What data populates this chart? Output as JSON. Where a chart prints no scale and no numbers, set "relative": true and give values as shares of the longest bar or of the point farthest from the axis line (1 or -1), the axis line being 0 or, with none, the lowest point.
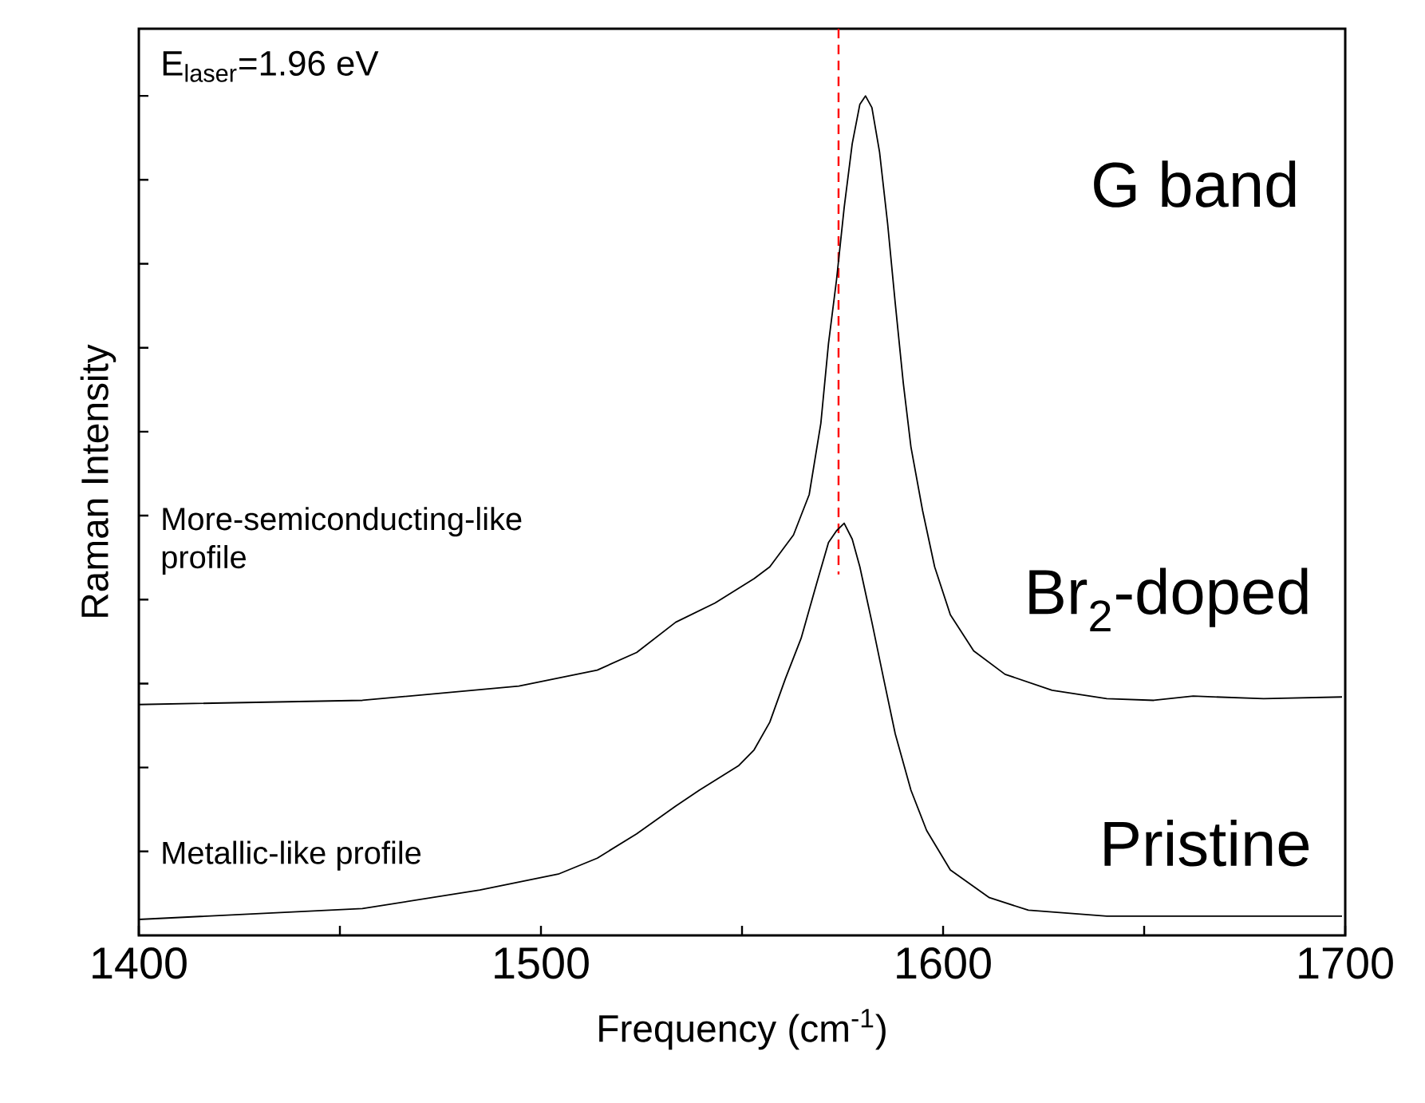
{
  "chart_data": {
    "type": "line",
    "relative": true,
    "xlabel": "Frequency (cm$^{-1}$)",
    "ylabel": "Raman Intensity",
    "xlim": [
      1400,
      1700
    ],
    "xticks": [
      1400,
      1500,
      1600,
      1700
    ],
    "ref_lines": [
      {
        "axis": "x",
        "value": 1574,
        "color": "#ff0000",
        "line_style": "dashed"
      }
    ],
    "annotations": [
      "E$_{laser}$=1.96 eV",
      "G band",
      "More-semiconducting-like profile",
      "Metallic-like profile"
    ],
    "series": [
      {
        "name": "Br$_{2}$-doped",
        "color": "#000000",
        "x": [
          1400.0,
          1455.6,
          1494.5,
          1514.0,
          1523.8,
          1533.5,
          1543.3,
          1553.0,
          1556.9,
          1562.8,
          1566.7,
          1569.6,
          1571.5,
          1573.5,
          1575.4,
          1577.4,
          1579.3,
          1580.7,
          1582.3,
          1584.2,
          1586.2,
          1588.1,
          1590.1,
          1592.0,
          1594.9,
          1597.9,
          1601.8,
          1607.6,
          1615.4,
          1627.1,
          1640.7,
          1652.4,
          1662.2,
          1679.7,
          1699.2
        ],
        "values": [
          0.275,
          0.28,
          0.297,
          0.316,
          0.337,
          0.373,
          0.396,
          0.425,
          0.439,
          0.477,
          0.525,
          0.61,
          0.705,
          0.781,
          0.867,
          0.943,
          0.99,
          1.0,
          0.986,
          0.933,
          0.848,
          0.753,
          0.658,
          0.582,
          0.506,
          0.439,
          0.382,
          0.339,
          0.311,
          0.292,
          0.282,
          0.28,
          0.285,
          0.282,
          0.284
        ]
      },
      {
        "name": "Pristine",
        "color": "#000000",
        "x": [
          1400.0,
          1455.6,
          1484.8,
          1504.3,
          1514.0,
          1523.8,
          1533.5,
          1539.4,
          1549.1,
          1553.0,
          1556.9,
          1560.8,
          1564.7,
          1568.6,
          1571.5,
          1573.5,
          1575.4,
          1577.4,
          1579.3,
          1582.3,
          1585.2,
          1588.1,
          1592.0,
          1595.9,
          1601.8,
          1611.5,
          1621.2,
          1640.7,
          1670.0,
          1699.2
        ],
        "values": [
          0.019,
          0.032,
          0.054,
          0.073,
          0.092,
          0.121,
          0.154,
          0.173,
          0.202,
          0.221,
          0.254,
          0.306,
          0.354,
          0.42,
          0.468,
          0.482,
          0.491,
          0.472,
          0.439,
          0.373,
          0.306,
          0.24,
          0.173,
          0.125,
          0.078,
          0.045,
          0.03,
          0.023,
          0.023,
          0.023
        ]
      }
    ]
  }
}
